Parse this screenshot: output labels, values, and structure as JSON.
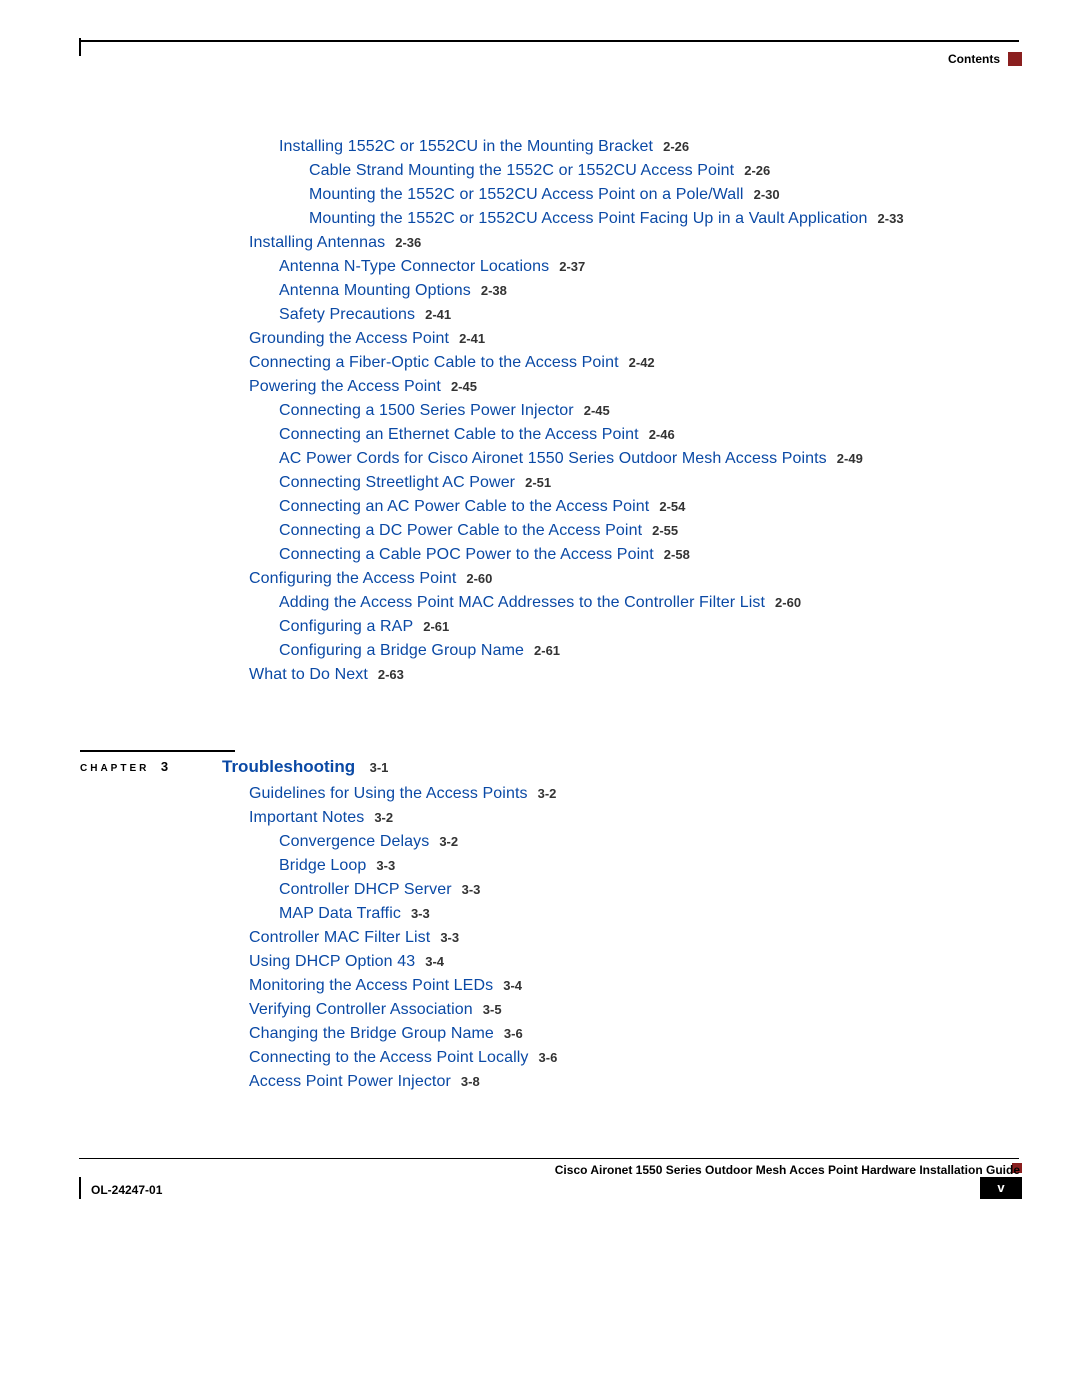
{
  "header": {
    "label": "Contents"
  },
  "chapter": {
    "prefix": "CHAPTER",
    "num": "3",
    "title": "Troubleshooting",
    "page": "3-1"
  },
  "footer": {
    "guide": "Cisco Aironet 1550 Series Outdoor Mesh Acces Point Hardware Installation Guide",
    "code": "OL-24247-01",
    "pagenum": "v"
  },
  "toc1": [
    {
      "indent": 1,
      "text": "Installing 1552C or 1552CU in the Mounting Bracket",
      "page": "2-26"
    },
    {
      "indent": 2,
      "text": "Cable Strand Mounting the 1552C or 1552CU Access Point",
      "page": "2-26"
    },
    {
      "indent": 2,
      "text": "Mounting the 1552C or 1552CU Access Point on a Pole/Wall",
      "page": "2-30"
    },
    {
      "indent": 2,
      "text": "Mounting the 1552C or 1552CU Access Point Facing Up in a Vault Application",
      "page": "2-33"
    },
    {
      "indent": 0,
      "text": "Installing Antennas",
      "page": "2-36"
    },
    {
      "indent": 1,
      "text": "Antenna N-Type Connector Locations",
      "page": "2-37"
    },
    {
      "indent": 1,
      "text": "Antenna Mounting Options",
      "page": "2-38"
    },
    {
      "indent": 1,
      "text": "Safety Precautions",
      "page": "2-41"
    },
    {
      "indent": 0,
      "text": "Grounding the Access Point",
      "page": "2-41"
    },
    {
      "indent": 0,
      "text": "Connecting a Fiber-Optic Cable to the Access Point",
      "page": "2-42"
    },
    {
      "indent": 0,
      "text": "Powering the Access Point",
      "page": "2-45"
    },
    {
      "indent": 1,
      "text": "Connecting a 1500 Series Power Injector",
      "page": "2-45"
    },
    {
      "indent": 1,
      "text": "Connecting an Ethernet Cable to the Access Point",
      "page": "2-46"
    },
    {
      "indent": 1,
      "text": "AC Power Cords for Cisco Aironet 1550 Series Outdoor Mesh Access Points",
      "page": "2-49"
    },
    {
      "indent": 1,
      "text": "Connecting Streetlight AC Power",
      "page": "2-51"
    },
    {
      "indent": 1,
      "text": "Connecting an AC Power Cable to the Access Point",
      "page": "2-54"
    },
    {
      "indent": 1,
      "text": "Connecting a DC Power Cable to the Access Point",
      "page": "2-55"
    },
    {
      "indent": 1,
      "text": "Connecting a Cable POC Power to the Access Point",
      "page": "2-58"
    },
    {
      "indent": 0,
      "text": "Configuring the Access Point",
      "page": "2-60"
    },
    {
      "indent": 1,
      "text": "Adding the Access Point MAC Addresses to the Controller Filter List",
      "page": "2-60"
    },
    {
      "indent": 1,
      "text": "Configuring a RAP",
      "page": "2-61"
    },
    {
      "indent": 1,
      "text": "Configuring a Bridge Group Name",
      "page": "2-61"
    },
    {
      "indent": 0,
      "text": "What to Do Next",
      "page": "2-63"
    }
  ],
  "toc2": [
    {
      "indent": 0,
      "text": "Guidelines for Using the Access Points",
      "page": "3-2"
    },
    {
      "indent": 0,
      "text": "Important Notes",
      "page": "3-2"
    },
    {
      "indent": 1,
      "text": "Convergence Delays",
      "page": "3-2"
    },
    {
      "indent": 1,
      "text": "Bridge Loop",
      "page": "3-3"
    },
    {
      "indent": 1,
      "text": "Controller DHCP Server",
      "page": "3-3"
    },
    {
      "indent": 1,
      "text": "MAP Data Traffic",
      "page": "3-3"
    },
    {
      "indent": 0,
      "text": "Controller MAC Filter List",
      "page": "3-3"
    },
    {
      "indent": 0,
      "text": "Using DHCP Option 43",
      "page": "3-4"
    },
    {
      "indent": 0,
      "text": "Monitoring the Access Point LEDs",
      "page": "3-4"
    },
    {
      "indent": 0,
      "text": "Verifying Controller Association",
      "page": "3-5"
    },
    {
      "indent": 0,
      "text": "Changing the Bridge Group Name",
      "page": "3-6"
    },
    {
      "indent": 0,
      "text": "Connecting to the Access Point Locally",
      "page": "3-6"
    },
    {
      "indent": 0,
      "text": "Access Point Power Injector",
      "page": "3-8"
    }
  ]
}
